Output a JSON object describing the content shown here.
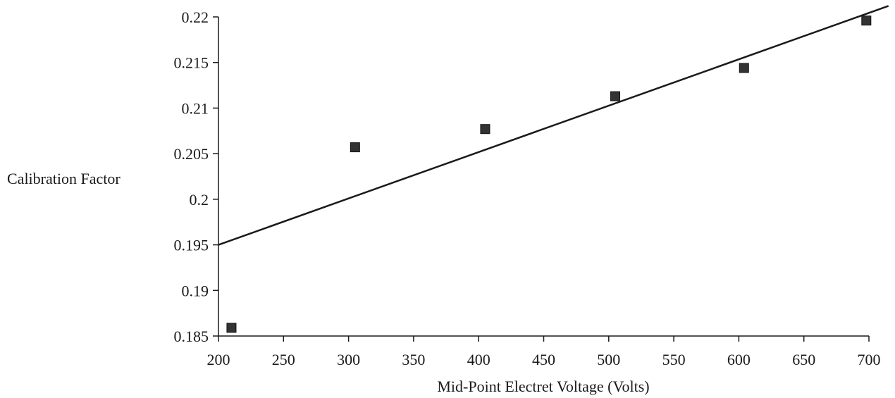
{
  "chart_data": {
    "type": "scatter",
    "title": "",
    "xlabel": "Mid-Point Electret Voltage (Volts)",
    "ylabel": "Calibration Factor",
    "xlim": [
      200,
      700
    ],
    "ylim": [
      0.185,
      0.22
    ],
    "x_ticks": [
      "200",
      "250",
      "300",
      "350",
      "400",
      "450",
      "500",
      "550",
      "600",
      "650",
      "700"
    ],
    "y_ticks": [
      "0.185",
      "0.19",
      "0.195",
      "0.2",
      "0.205",
      "0.21",
      "0.215",
      "0.22"
    ],
    "grid": false,
    "legend": "none",
    "series": [
      {
        "marker": "square",
        "color": "#333333",
        "points": [
          {
            "x": 210,
            "y": 0.1859
          },
          {
            "x": 305,
            "y": 0.2057
          },
          {
            "x": 405,
            "y": 0.2077
          },
          {
            "x": 505,
            "y": 0.2113
          },
          {
            "x": 604,
            "y": 0.2144
          },
          {
            "x": 698,
            "y": 0.2196
          }
        ]
      }
    ],
    "trendline": {
      "type": "linear",
      "color": "#1a1a1a",
      "from": {
        "x": 200,
        "y": 0.195
      },
      "to": {
        "x": 715,
        "y": 0.2212
      }
    }
  }
}
